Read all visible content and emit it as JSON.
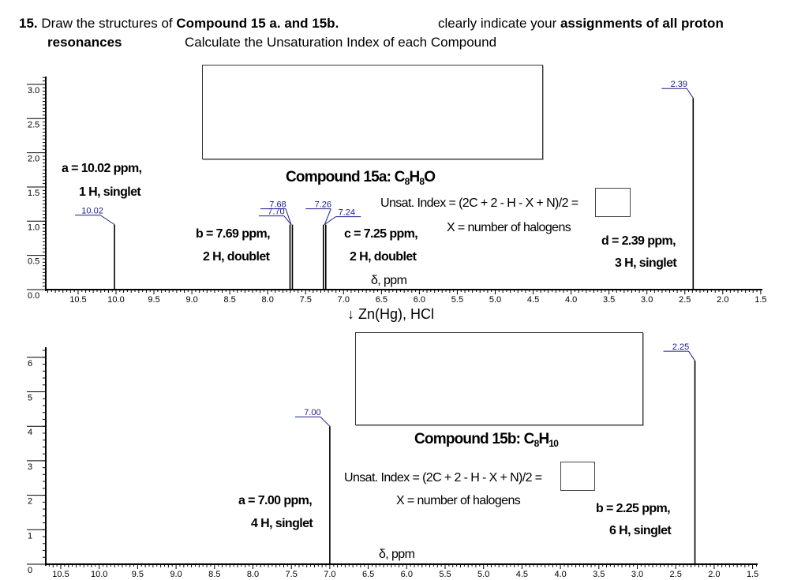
{
  "question": {
    "number": "15.",
    "part1": " Draw the structures of ",
    "part1_bold": "Compound 15 a. and 15b.",
    "part2": "clearly indicate your ",
    "part2_bold": "assignments of all proton",
    "line2_bold": "resonances",
    "line2": "Calculate the Unsaturation Index of each Compound"
  },
  "reagent": {
    "arrow": "↓",
    "text": "Zn(Hg), HCl"
  },
  "compound_a": {
    "title_prefix": "Compound 15a: C",
    "formula_c": "8",
    "formula_h_label": "H",
    "formula_h": "8",
    "formula_suffix": "O",
    "unsat_formula": "Unsat. Index = (2C + 2 - H - X + N)/2 =",
    "halogen_note": "X = number of halogens",
    "assignments": [
      {
        "line1": "a = 10.02 ppm,",
        "line2": "1 H, singlet"
      },
      {
        "line1": "b = 7.69 ppm,",
        "line2": "2 H, doublet"
      },
      {
        "line1": "c = 7.25 ppm,",
        "line2": "2 H, doublet"
      },
      {
        "line1": "d = 2.39 ppm,",
        "line2": "3 H, singlet"
      }
    ],
    "axis_label": "δ, ppm"
  },
  "compound_b": {
    "title_prefix": "Compound 15b: C",
    "formula_c": "8",
    "formula_h_label": "H",
    "formula_h": "10",
    "formula_suffix": "",
    "unsat_formula": "Unsat. Index = (2C + 2 - H - X + N)/2 =",
    "halogen_note": "X = number of halogens",
    "assignments": [
      {
        "line1": "a = 7.00 ppm,",
        "line2": "4 H, singlet"
      },
      {
        "line1": "b = 2.25 ppm,",
        "line2": "6 H, singlet"
      }
    ],
    "axis_label": "δ, ppm"
  },
  "colors": {
    "peak_label": "#1a1a8c",
    "axis": "#000000",
    "box_border": "#333333"
  },
  "chart_data": [
    {
      "type": "line",
      "title": "Compound 15a: C8H8O (1H NMR)",
      "xlabel": "δ, ppm",
      "ylabel": "",
      "xlim": [
        10.9,
        1.5
      ],
      "ylim": [
        0,
        3.0
      ],
      "x_ticks": [
        "10.5",
        "10.0",
        "9.5",
        "9.0",
        "8.5",
        "8.0",
        "7.5",
        "7.0",
        "6.5",
        "6.0",
        "5.5",
        "5.0",
        "4.5",
        "4.0",
        "3.5",
        "3.0",
        "2.5",
        "2.0",
        "1.5"
      ],
      "y_ticks": [
        "0.0",
        "0.5",
        "1.0",
        "1.5",
        "2.0",
        "2.5",
        "3.0"
      ],
      "peaks": [
        {
          "ppm": 10.02,
          "height": 0.95,
          "labels": [
            "10.02"
          ]
        },
        {
          "ppm": 7.69,
          "height": 0.95,
          "labels": [
            "7.68",
            "7.70"
          ]
        },
        {
          "ppm": 7.25,
          "height": 0.95,
          "labels": [
            "7.26",
            "7.24"
          ]
        },
        {
          "ppm": 2.39,
          "height": 2.8,
          "labels": [
            "2.39"
          ]
        }
      ]
    },
    {
      "type": "line",
      "title": "Compound 15b: C8H10 (1H NMR)",
      "xlabel": "δ, ppm",
      "ylabel": "",
      "xlim": [
        10.7,
        1.4
      ],
      "ylim": [
        0,
        6
      ],
      "x_ticks": [
        "10.5",
        "10.0",
        "9.5",
        "9.0",
        "8.5",
        "8.0",
        "7.5",
        "7.0",
        "6.5",
        "6.0",
        "5.5",
        "5.0",
        "4.5",
        "4.0",
        "3.5",
        "3.0",
        "2.5",
        "2.0",
        "1.5"
      ],
      "y_ticks": [
        "0",
        "1",
        "2",
        "3",
        "4",
        "5",
        "6"
      ],
      "peaks": [
        {
          "ppm": 7.0,
          "height": 4.0,
          "labels": [
            "7.00"
          ]
        },
        {
          "ppm": 2.25,
          "height": 5.9,
          "labels": [
            "2.25"
          ]
        }
      ]
    }
  ]
}
